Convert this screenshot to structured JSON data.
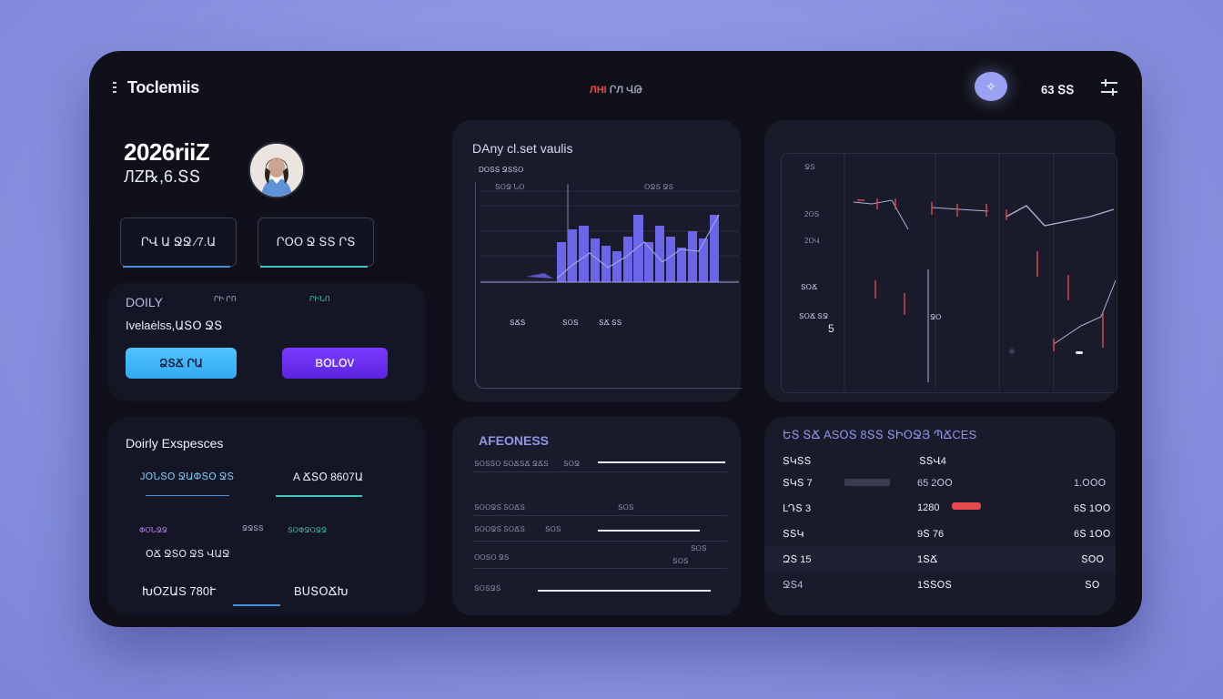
{
  "header": {
    "brand": "Toclemiis",
    "center_label_a": "ЛHI",
    "center_label_b": "ՐЛ ՎԹ",
    "right_label": "63 ՏՏ",
    "accent": "#9aa1f2"
  },
  "profile": {
    "year": "2026riiZ",
    "subtitle": "ЛZ℞,6.ՏՏ",
    "cards": [
      {
        "label": "ՐՎ Ա ՋՋ ⁄7.Ա"
      },
      {
        "label": "ՐՕՕ Ջ ՏՏ ՐՏ"
      }
    ]
  },
  "daily": {
    "title": "DOILY",
    "tag_a": "ՐԻ ՐՈ",
    "tag_b": "ՐԻՆՈ",
    "subtitle": "Ivelaėlss,ԱՏՕ ՋՏ",
    "button_primary": "ՁՏՃ ՐԱ",
    "button_secondary": "BՕLՕV"
  },
  "expenses": {
    "title": "Doirly Exspesces",
    "tab_a": "JՕՆՏՕ ՋԱՓՏՕ ՋՏ",
    "tab_b": "A ՃՏՕ 8607Ա",
    "row_a": "ՓՕՆՋՋ",
    "row_b": "ՋՋՏՏ",
    "row_c": "ՏՕՓՋՕՋՋ",
    "row_d": "ՕՃ ՋՏՕ ՋՏ ՎԱՋ",
    "footer_left": "ԽՕZԱS 780Ւ",
    "footer_right": "BՍՏՕՃԽ"
  },
  "daily_chart": {
    "title": "DAny cl.set vaulis",
    "sublabel": "DՕՏՏ ՋՏՏՕ",
    "legend_a": "ՏՕՋ ՆՕ",
    "legend_b": "ՕՋՏ ՋՏ",
    "bottom_a": "ՏՃՏ",
    "bottom_b": "ՏՕՏ",
    "bottom_c": "ՏՃ ՏՏ"
  },
  "right_chart": {
    "label_1": "ՋՏ",
    "label_2": "2ՕՏ",
    "label_3": "2ՕՎ",
    "label_4": "ՏՕՃ",
    "annot_left": "ՏՕՃ ՏՋ",
    "annot_num": "5",
    "annot_right": "ՋՕ"
  },
  "afeoness": {
    "title": "AFEONESS",
    "rows": [
      {
        "label": "ՏՕՏՏՕ ՏՕՃՏՃ ՋՃՏ",
        "value": "ՏՕՋ"
      },
      {
        "label": "ՏՕՕՋՏ ՏՕՃՏ",
        "value": "ՏՕՏ"
      },
      {
        "label": "ՏՕՕՋՏ ՏՕՃՏ",
        "value": "ՏՕՏ"
      },
      {
        "label": "ՕՕՏՕ ՋՏ",
        "value": "ՏՕՏ"
      },
      {
        "label": "ՏՕՏՋՏ",
        "value": "ՏՕՏ"
      }
    ]
  },
  "table": {
    "title": "ԵՏ ՏՃ ASՕՏ 8ՏՏ ՏԻՕՋՅ ՊՃCES",
    "header_left": "ՏԿՏՏ",
    "header_right": "ՏՏՎ4",
    "rows": [
      {
        "name": "ՏԿՏ 7",
        "a": "65 2ՕՕ",
        "b": "1.ՕՕՕ"
      },
      {
        "name": "ԼԴՏ 3",
        "a": "1280",
        "b": "6Տ 1ՕՕ"
      },
      {
        "name": "ՏՏԿ",
        "a": "9Տ 76",
        "b": "6Տ 1ՕՕ"
      },
      {
        "name": "ԶՏ 15",
        "a": "1ՏՃ",
        "b": "ՏՕՕ"
      },
      {
        "name": "ՋՏ4",
        "a": "1ՏՏՕՏ",
        "b": "ՏՕ"
      }
    ],
    "highlight_color": "#e5484d"
  },
  "colors": {
    "bg": "#0f1019",
    "panel": "#191a2a",
    "purple_bar": "#6b66e8",
    "cyan": "#4fc4ff",
    "violet": "#7a3cff"
  }
}
